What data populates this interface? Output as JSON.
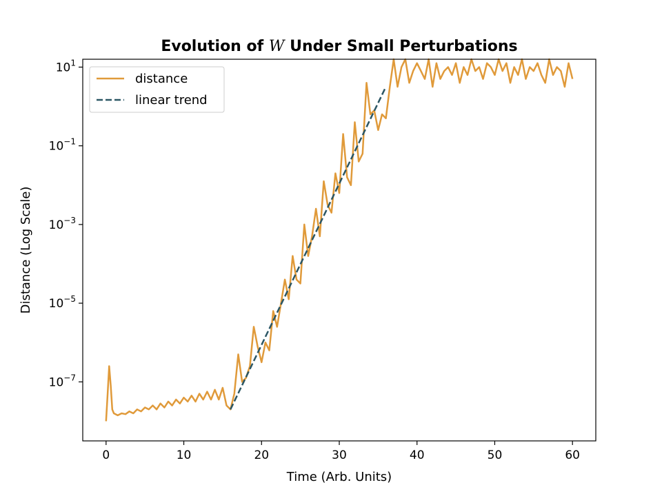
{
  "chart_data": {
    "type": "line",
    "title_prefix": "Evolution of ",
    "title_symbol": "W",
    "title_suffix": " Under Small Perturbations",
    "xlabel": "Time (Arb. Units)",
    "ylabel": "Distance (Log Scale)",
    "xlim": [
      -3,
      63
    ],
    "ylim_log10": [
      -8.5,
      1.2
    ],
    "yscale": "log",
    "grid": false,
    "legend_position": "top-left",
    "x_ticks": [
      0,
      10,
      20,
      30,
      40,
      50,
      60
    ],
    "y_ticks": [
      {
        "base": "10",
        "exp": "1",
        "log10": 1
      },
      {
        "base": "10",
        "exp": "−1",
        "log10": -1
      },
      {
        "base": "10",
        "exp": "−3",
        "log10": -3
      },
      {
        "base": "10",
        "exp": "−5",
        "log10": -5
      },
      {
        "base": "10",
        "exp": "−7",
        "log10": -7
      }
    ],
    "series": [
      {
        "name": "distance",
        "color": "#e09a3a",
        "style": "solid",
        "x": [
          0,
          0.2,
          0.4,
          0.6,
          0.8,
          1.0,
          1.5,
          2,
          2.5,
          3,
          3.5,
          4,
          4.5,
          5,
          5.5,
          6,
          6.5,
          7,
          7.5,
          8,
          8.5,
          9,
          9.5,
          10,
          10.5,
          11,
          11.5,
          12,
          12.5,
          13,
          13.5,
          14,
          14.5,
          15,
          15.5,
          16,
          16.5,
          17,
          17.5,
          18,
          18.5,
          19,
          19.5,
          20,
          20.5,
          21,
          21.5,
          22,
          22.5,
          23,
          23.5,
          24,
          24.5,
          25,
          25.5,
          26,
          26.5,
          27,
          27.5,
          28,
          28.5,
          29,
          29.5,
          30,
          30.5,
          31,
          31.5,
          32,
          32.5,
          33,
          33.5,
          34,
          34.5,
          35,
          35.5,
          36,
          36.5,
          37,
          37.5,
          38,
          38.5,
          39,
          39.5,
          40,
          40.5,
          41,
          41.5,
          42,
          42.5,
          43,
          43.5,
          44,
          44.5,
          45,
          45.5,
          46,
          46.5,
          47,
          47.5,
          48,
          48.5,
          49,
          49.5,
          50,
          50.5,
          51,
          51.5,
          52,
          52.5,
          53,
          53.5,
          54,
          54.5,
          55,
          55.5,
          56,
          56.5,
          57,
          57.5,
          58,
          58.5,
          59,
          59.5,
          60
        ],
        "y_log10": [
          -8.0,
          -7.3,
          -6.6,
          -7.1,
          -7.7,
          -7.8,
          -7.85,
          -7.8,
          -7.82,
          -7.75,
          -7.8,
          -7.7,
          -7.75,
          -7.65,
          -7.7,
          -7.6,
          -7.7,
          -7.55,
          -7.65,
          -7.5,
          -7.6,
          -7.45,
          -7.55,
          -7.4,
          -7.5,
          -7.35,
          -7.5,
          -7.3,
          -7.45,
          -7.25,
          -7.45,
          -7.2,
          -7.45,
          -7.15,
          -7.6,
          -7.7,
          -7.3,
          -6.3,
          -7.0,
          -6.9,
          -6.6,
          -5.6,
          -6.1,
          -6.5,
          -6.0,
          -6.2,
          -5.2,
          -5.6,
          -5.0,
          -4.4,
          -4.9,
          -3.8,
          -4.4,
          -4.5,
          -3.0,
          -3.8,
          -3.3,
          -2.6,
          -3.3,
          -1.9,
          -2.5,
          -2.7,
          -1.7,
          -2.2,
          -0.7,
          -1.8,
          -2.0,
          -0.4,
          -1.4,
          -1.2,
          0.6,
          -0.2,
          -0.1,
          -0.6,
          -0.2,
          -0.3,
          0.5,
          1.2,
          0.5,
          1.0,
          1.2,
          0.6,
          0.9,
          1.1,
          0.9,
          0.7,
          1.2,
          0.5,
          1.1,
          0.7,
          0.9,
          1.0,
          0.8,
          1.1,
          0.6,
          1.0,
          0.8,
          1.2,
          0.9,
          1.0,
          0.7,
          1.1,
          1.0,
          0.8,
          1.2,
          0.9,
          1.1,
          0.6,
          1.0,
          0.8,
          1.2,
          0.7,
          1.0,
          0.9,
          1.1,
          0.8,
          0.6,
          1.2,
          0.8,
          1.0,
          0.9,
          0.5,
          1.1,
          0.7
        ]
      },
      {
        "name": "linear trend",
        "color": "#2b5664",
        "style": "dashed",
        "x": [
          16,
          36
        ],
        "y_log10": [
          -7.7,
          0.5
        ]
      }
    ]
  }
}
